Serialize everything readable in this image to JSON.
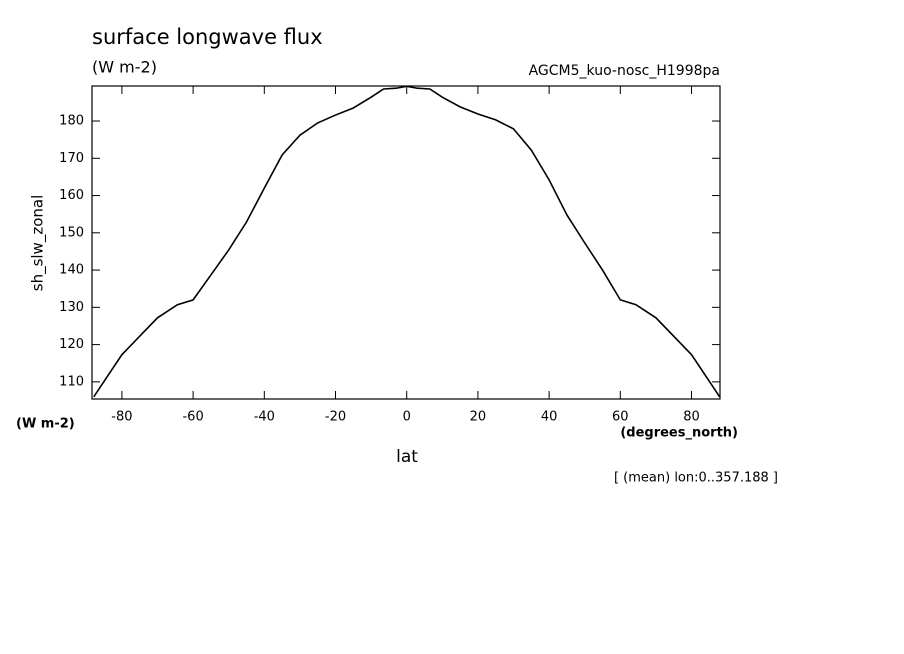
{
  "chart_data": {
    "type": "line",
    "title": "surface longwave flux",
    "units": "(W m-2)",
    "dataset": "AGCM5_kuo-nosc_H1998pa",
    "y_label": "sh_slw_zonal",
    "y_units": "(W m-2)",
    "x_units": "(degrees_north)",
    "x_label": "lat",
    "footnote": "[ (mean) lon:0..357.188 ]",
    "x": [
      -87.9,
      -80,
      -70,
      -64.4,
      -60,
      -55,
      -50,
      -45,
      -40,
      -35,
      -30,
      -25,
      -20,
      -15,
      -10,
      -6.5,
      -3,
      0,
      3,
      6.5,
      10,
      15,
      20,
      25,
      30,
      35,
      40,
      45,
      50,
      55,
      60,
      64.4,
      70,
      80,
      87.9
    ],
    "series": [
      {
        "name": "sh_slw_zonal",
        "color": "#000000",
        "values": [
          106,
          117.3,
          127.2,
          130.7,
          132.0,
          138.7,
          145.4,
          152.9,
          162.0,
          170.9,
          176.2,
          179.5,
          181.6,
          183.5,
          186.4,
          188.6,
          188.8,
          189.3,
          188.8,
          188.6,
          186.4,
          183.8,
          181.9,
          180.3,
          177.9,
          172.2,
          164.2,
          154.8,
          147.3,
          140.0,
          132.0,
          130.7,
          127.2,
          117.3,
          106
        ]
      }
    ],
    "xlim": [
      -88.4,
      88
    ],
    "ylim": [
      105.4,
      189.4
    ],
    "xticks": [
      -80,
      -60,
      -40,
      -20,
      0,
      20,
      40,
      60,
      80
    ],
    "yticks": [
      110,
      120,
      130,
      140,
      150,
      160,
      170,
      180
    ]
  }
}
